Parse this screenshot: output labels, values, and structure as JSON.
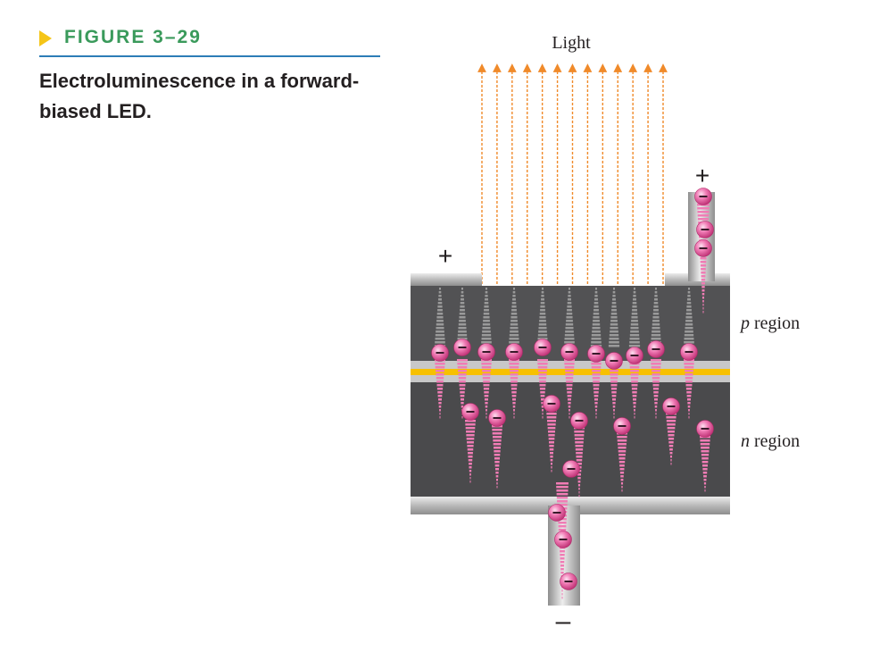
{
  "figure": {
    "label": "FIGURE 3–29",
    "caption": "Electroluminescence in a forward-biased LED."
  },
  "diagram": {
    "light_label": "Light",
    "p_region_prefix": "p",
    "p_region_suffix": " region",
    "n_region_prefix": "n",
    "n_region_suffix": " region",
    "anode_left_sign": "+",
    "anode_right_sign": "+",
    "cathode_sign": "–",
    "electron_sign": "–",
    "light_ray_count": 13,
    "colors": {
      "light_rays": "#f08a2a",
      "semiconductor": "#4d4d4f",
      "junction": "#f7c000",
      "electron": "#e8559a",
      "electron_trail": "#f07cb5",
      "hole_trail": "#9a9a9a",
      "contact_metal": "#c9c9c9",
      "accent": "#2d7db7"
    }
  }
}
